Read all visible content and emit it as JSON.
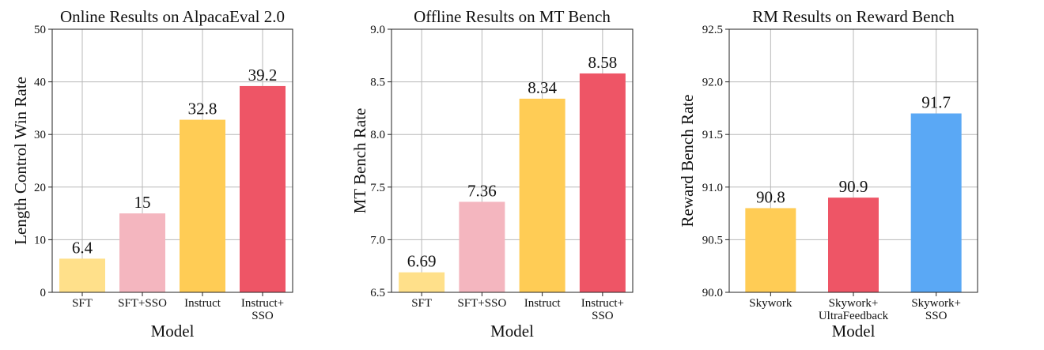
{
  "chart_data": [
    {
      "type": "bar",
      "title": "Online Results on AlpacaEval 2.0",
      "xlabel": "Model",
      "ylabel": "Length Control Win Rate",
      "ylim": [
        0,
        50
      ],
      "yticks": [
        "0",
        "10",
        "20",
        "30",
        "40",
        "50"
      ],
      "ytick_values": [
        0,
        10,
        20,
        30,
        40,
        50
      ],
      "grid": true,
      "categories": [
        [
          "SFT"
        ],
        [
          "SFT+SSO"
        ],
        [
          "Instruct"
        ],
        [
          "Instruct+",
          "SSO"
        ]
      ],
      "values": [
        6.4,
        15,
        32.8,
        39.2
      ],
      "value_labels": [
        "6.4",
        "15",
        "32.8",
        "39.2"
      ],
      "colors": [
        "#ffe08a",
        "#f4b6bf",
        "#ffcc55",
        "#ee5566"
      ]
    },
    {
      "type": "bar",
      "title": "Offline Results on MT Bench",
      "xlabel": "Model",
      "ylabel": "MT Bench Rate",
      "ylim": [
        6.5,
        9.0
      ],
      "yticks": [
        "6.5",
        "7.0",
        "7.5",
        "8.0",
        "8.5",
        "9.0"
      ],
      "ytick_values": [
        6.5,
        7.0,
        7.5,
        8.0,
        8.5,
        9.0
      ],
      "grid": true,
      "categories": [
        [
          "SFT"
        ],
        [
          "SFT+SSO"
        ],
        [
          "Instruct"
        ],
        [
          "Instruct+",
          "SSO"
        ]
      ],
      "values": [
        6.69,
        7.36,
        8.34,
        8.58
      ],
      "value_labels": [
        "6.69",
        "7.36",
        "8.34",
        "8.58"
      ],
      "colors": [
        "#ffe08a",
        "#f4b6bf",
        "#ffcc55",
        "#ee5566"
      ]
    },
    {
      "type": "bar",
      "title": "RM Results on Reward Bench",
      "xlabel": "Model",
      "ylabel": "Reward Bench Rate",
      "ylim": [
        90.0,
        92.5
      ],
      "yticks": [
        "90.0",
        "90.5",
        "91.0",
        "91.5",
        "92.0",
        "92.5"
      ],
      "ytick_values": [
        90.0,
        90.5,
        91.0,
        91.5,
        92.0,
        92.5
      ],
      "grid": true,
      "categories": [
        [
          "Skywork"
        ],
        [
          "Skywork+",
          "UltraFeedback"
        ],
        [
          "Skywork+",
          "SSO"
        ]
      ],
      "values": [
        90.8,
        90.9,
        91.7
      ],
      "value_labels": [
        "90.8",
        "90.9",
        "91.7"
      ],
      "colors": [
        "#ffcc55",
        "#ee5566",
        "#5aa8f5"
      ]
    }
  ]
}
